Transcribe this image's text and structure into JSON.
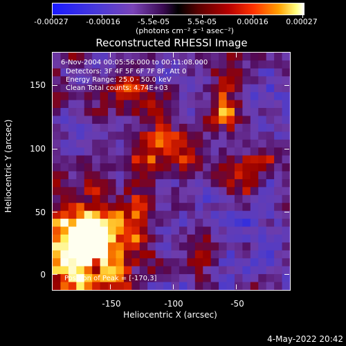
{
  "colorbar": {
    "tick_labels": [
      "-0.00027",
      "-0.00016",
      "-5.5e-05",
      "5.5e-05",
      "0.00016",
      "0.00027"
    ],
    "units": "(photons cm⁻² s⁻¹ asec⁻²)"
  },
  "title": "Reconstructed RHESSI Image",
  "annotations": {
    "time": "6-Nov-2004 00:05:56.000 to 00:11:08.000",
    "detectors": "Detectors: 3F 4F 5F 6F 7F 8F, Att 0",
    "energy": "Energy Range: 25.0 - 50.0 keV",
    "clean": "Clean    Total counts: 4.74E+03",
    "peak": "Position of Peak = [-170,3]"
  },
  "x_axis": {
    "label": "Heliocentric X (arcsec)",
    "ticks": [
      "-150",
      "-100",
      "-50"
    ]
  },
  "y_axis": {
    "label": "Heliocentric Y (arcsec)",
    "ticks": [
      "0",
      "50",
      "100",
      "150"
    ]
  },
  "date_stamp": "4-May-2022 20:42",
  "colors": {
    "background": "#000000",
    "text": "#ffffff"
  }
}
